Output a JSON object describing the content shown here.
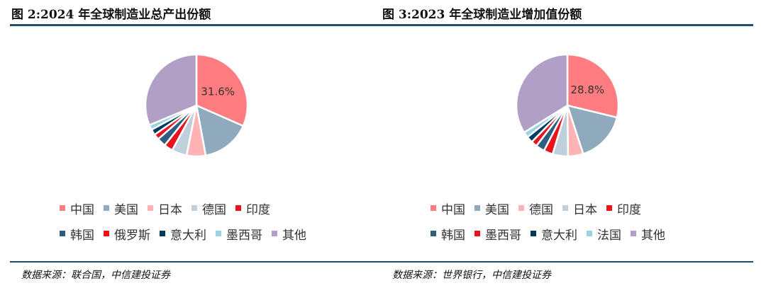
{
  "chart_data": [
    {
      "type": "pie",
      "title": "图 2:2024 年全球制造业总产出份额",
      "source": "数据来源：联合国，中信建投证券",
      "slice_label": "31.6%",
      "legend": {
        "rows": [
          [
            "中国",
            "美国",
            "日本",
            "德国",
            "印度"
          ],
          [
            "韩国",
            "俄罗斯",
            "意大利",
            "墨西哥",
            "其他"
          ]
        ]
      },
      "slices": [
        {
          "name": "中国",
          "value": 31.6,
          "color": "#ff7c80"
        },
        {
          "name": "美国",
          "value": 15.5,
          "color": "#8faabc"
        },
        {
          "name": "日本",
          "value": 6.0,
          "color": "#ffb3b5"
        },
        {
          "name": "德国",
          "value": 4.8,
          "color": "#bfcfdc"
        },
        {
          "name": "印度",
          "value": 2.8,
          "color": "#e8131c"
        },
        {
          "name": "韩国",
          "value": 2.8,
          "color": "#2f5f80"
        },
        {
          "name": "俄罗斯",
          "value": 1.8,
          "color": "#e8131c"
        },
        {
          "name": "意大利",
          "value": 1.8,
          "color": "#003a5c"
        },
        {
          "name": "墨西哥",
          "value": 1.6,
          "color": "#9cd3e3"
        },
        {
          "name": "其他",
          "value": 31.3,
          "color": "#b29fc6"
        }
      ]
    },
    {
      "type": "pie",
      "title": "图 3:2023 年全球制造业增加值份额",
      "source": "数据来源：世界银行，中信建投证券",
      "slice_label": "28.8%",
      "legend": {
        "rows": [
          [
            "中国",
            "美国",
            "德国",
            "日本",
            "印度"
          ],
          [
            "韩国",
            "墨西哥",
            "意大利",
            "法国",
            "其他"
          ]
        ]
      },
      "slices": [
        {
          "name": "中国",
          "value": 28.8,
          "color": "#ff7c80"
        },
        {
          "name": "美国",
          "value": 16.2,
          "color": "#8faabc"
        },
        {
          "name": "德国",
          "value": 4.8,
          "color": "#ffb3b5"
        },
        {
          "name": "日本",
          "value": 4.9,
          "color": "#bfcfdc"
        },
        {
          "name": "印度",
          "value": 2.9,
          "color": "#e8131c"
        },
        {
          "name": "韩国",
          "value": 2.8,
          "color": "#2f5f80"
        },
        {
          "name": "墨西哥",
          "value": 1.9,
          "color": "#e8131c"
        },
        {
          "name": "意大利",
          "value": 2.0,
          "color": "#003a5c"
        },
        {
          "name": "法国",
          "value": 1.8,
          "color": "#9cd3e3"
        },
        {
          "name": "其他",
          "value": 33.9,
          "color": "#b29fc6"
        }
      ]
    }
  ]
}
